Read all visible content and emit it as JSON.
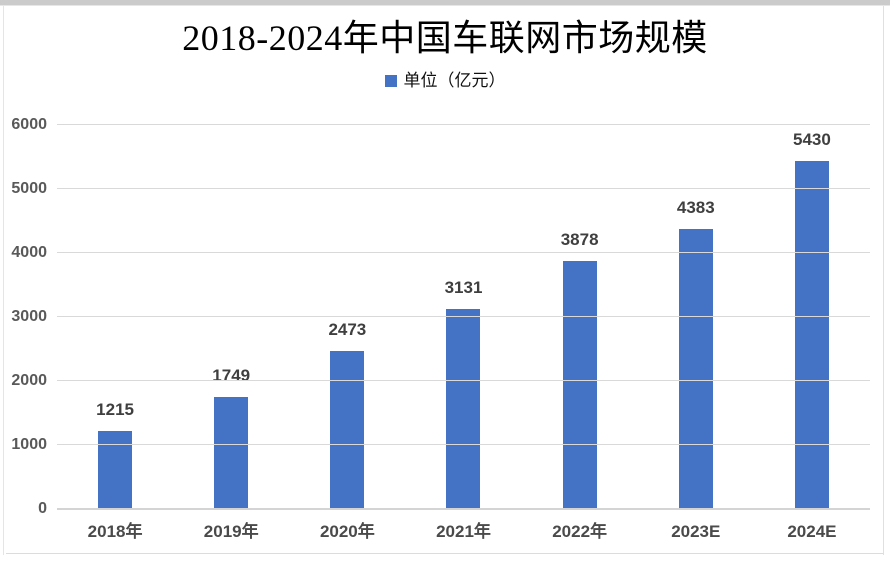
{
  "chart_data": {
    "type": "bar",
    "title": "2018-2024年中国车联网市场规模",
    "legend": {
      "position": "top",
      "entries": [
        "单位（亿元）"
      ]
    },
    "categories": [
      "2018年",
      "2019年",
      "2020年",
      "2021年",
      "2022年",
      "2023E",
      "2024E"
    ],
    "values": [
      1215,
      1749,
      2473,
      3131,
      3878,
      4383,
      5430
    ],
    "xlabel": "",
    "ylabel": "",
    "ylim": [
      0,
      6000
    ],
    "yticks": [
      0,
      1000,
      2000,
      3000,
      4000,
      5000,
      6000
    ],
    "grid": true,
    "colors": {
      "bar": "#4472C4",
      "gridline": "#D9D9D9",
      "zero_axis_line": "#D4D4D4",
      "axis_text": "#595959",
      "data_label": "#3F3F3F",
      "title_text": "#000000"
    }
  }
}
